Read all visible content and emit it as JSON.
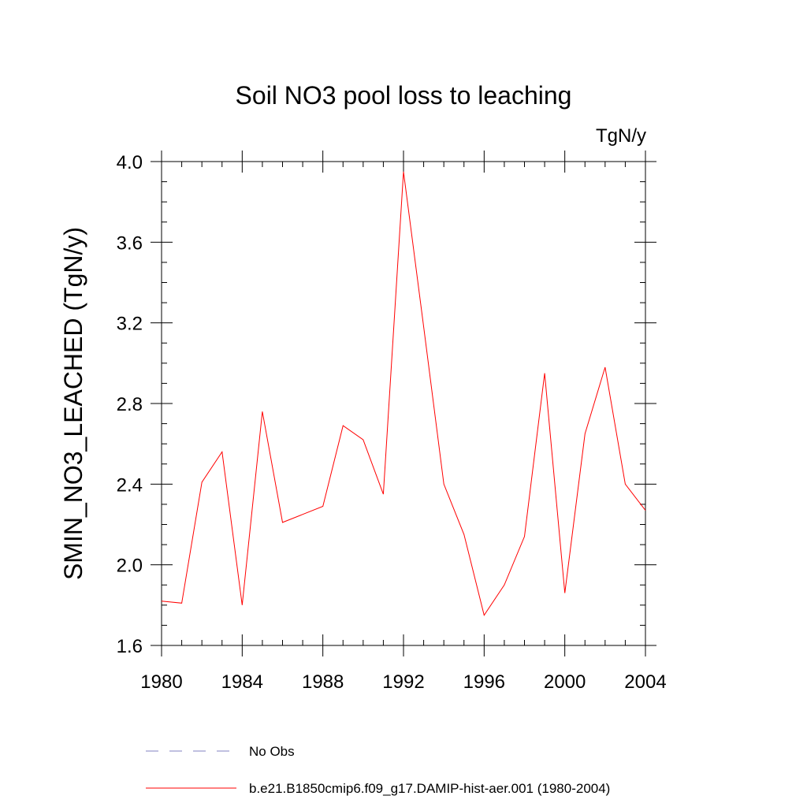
{
  "chart_data": {
    "type": "line",
    "title": "Soil NO3 pool loss to leaching",
    "units_label": "TgN/y",
    "ylabel": "SMIN_NO3_LEACHED  (TgN/y)",
    "xlabel": "",
    "xlim": [
      1980,
      2004
    ],
    "ylim": [
      1.6,
      4.0
    ],
    "x_ticks": [
      1980,
      1984,
      1988,
      1992,
      1996,
      2000,
      2004
    ],
    "y_ticks": [
      "1.6",
      "2.0",
      "2.4",
      "2.8",
      "3.2",
      "3.6",
      "4.0"
    ],
    "grid": false,
    "legend_position": "bottom",
    "series": [
      {
        "name": "b.e21.B1850cmip6.f09_g17.DAMIP-hist-aer.001 (1980-2004)",
        "color": "#ff0000",
        "style": "solid",
        "x": [
          1980,
          1981,
          1982,
          1983,
          1984,
          1985,
          1986,
          1987,
          1988,
          1989,
          1990,
          1991,
          1992,
          1993,
          1994,
          1995,
          1996,
          1997,
          1998,
          1999,
          2000,
          2001,
          2002,
          2003,
          2004
        ],
        "y": [
          1.82,
          1.81,
          2.41,
          2.56,
          1.8,
          2.76,
          2.21,
          2.25,
          2.29,
          2.69,
          2.62,
          2.35,
          3.95,
          3.18,
          2.4,
          2.15,
          1.75,
          1.9,
          2.14,
          2.95,
          1.86,
          2.65,
          2.98,
          2.4,
          2.27
        ]
      }
    ],
    "legend": [
      {
        "label": "No Obs",
        "color": "#8080c0",
        "style": "dashed"
      },
      {
        "label": "b.e21.B1850cmip6.f09_g17.DAMIP-hist-aer.001 (1980-2004)",
        "color": "#ff0000",
        "style": "solid"
      }
    ]
  }
}
